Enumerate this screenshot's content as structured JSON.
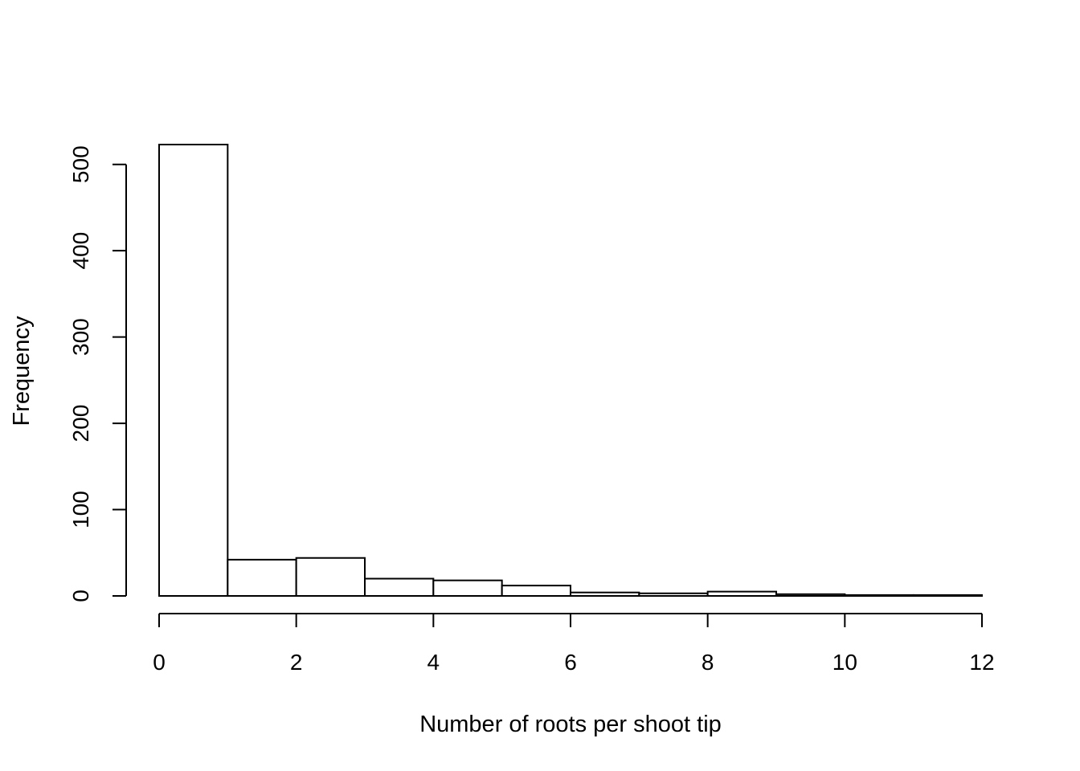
{
  "chart_data": {
    "type": "bar",
    "title": "",
    "xlabel": "Number of roots per shoot tip",
    "ylabel": "Frequency",
    "bins": [
      {
        "from": 0,
        "to": 1,
        "count": 523
      },
      {
        "from": 1,
        "to": 2,
        "count": 42
      },
      {
        "from": 2,
        "to": 3,
        "count": 44
      },
      {
        "from": 3,
        "to": 4,
        "count": 20
      },
      {
        "from": 4,
        "to": 5,
        "count": 18
      },
      {
        "from": 5,
        "to": 6,
        "count": 12
      },
      {
        "from": 6,
        "to": 7,
        "count": 4
      },
      {
        "from": 7,
        "to": 8,
        "count": 3
      },
      {
        "from": 8,
        "to": 9,
        "count": 5
      },
      {
        "from": 9,
        "to": 10,
        "count": 2
      },
      {
        "from": 10,
        "to": 11,
        "count": 1
      },
      {
        "from": 11,
        "to": 12,
        "count": 1
      }
    ],
    "xlim": [
      0,
      12
    ],
    "ylim": [
      0,
      523
    ],
    "x_ticks": [
      0,
      2,
      4,
      6,
      8,
      10,
      12
    ],
    "x_tick_labels": [
      "0",
      "2",
      "4",
      "6",
      "8",
      "10",
      "12"
    ],
    "y_ticks": [
      0,
      100,
      200,
      300,
      400,
      500
    ],
    "y_tick_labels": [
      "0",
      "100",
      "200",
      "300",
      "400",
      "500"
    ],
    "grid": false,
    "legend": "none",
    "bar_fill": "#ffffff",
    "bar_stroke": "#000000"
  }
}
